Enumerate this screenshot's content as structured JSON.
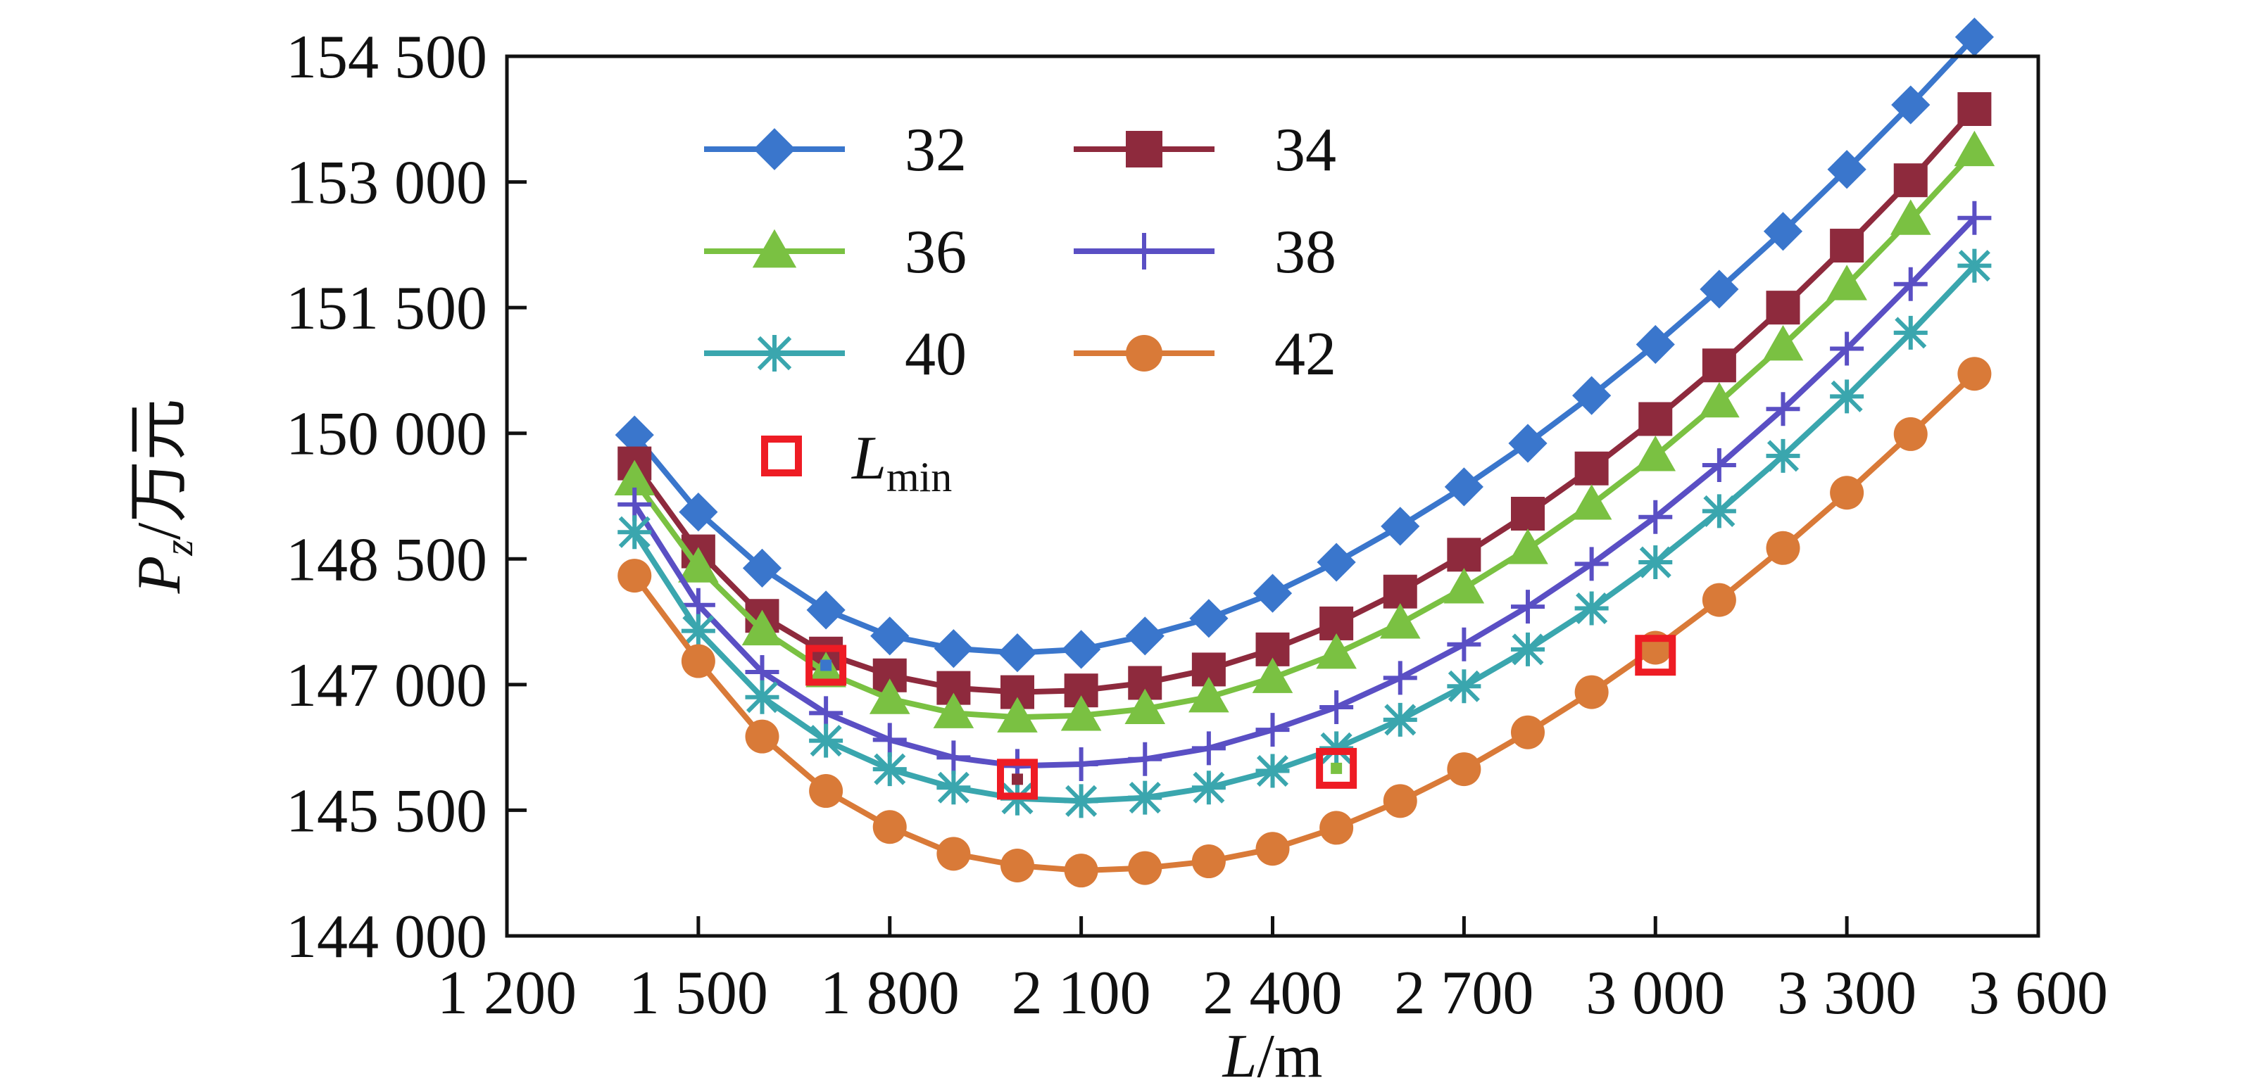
{
  "chart_data": {
    "type": "line",
    "x": [
      1400,
      1500,
      1600,
      1700,
      1800,
      1900,
      2000,
      2100,
      2200,
      2300,
      2400,
      2500,
      2600,
      2700,
      2800,
      2900,
      3000,
      3100,
      3200,
      3300,
      3400,
      3500
    ],
    "series": [
      {
        "name": "32",
        "color": "#3a76cc",
        "marker": "diamond",
        "values": [
          149980,
          149060,
          148390,
          147890,
          147580,
          147430,
          147380,
          147420,
          147580,
          147790,
          148090,
          148460,
          148890,
          149360,
          149880,
          150450,
          151060,
          151720,
          152410,
          153150,
          153920,
          154730
        ]
      },
      {
        "name": "34",
        "color": "#8e2a3d",
        "marker": "square",
        "values": [
          149640,
          148590,
          147820,
          147370,
          147110,
          146960,
          146910,
          146930,
          147020,
          147180,
          147420,
          147730,
          148110,
          148550,
          149040,
          149580,
          150170,
          150810,
          151500,
          152240,
          153020,
          153870
        ]
      },
      {
        "name": "36",
        "color": "#7ac142",
        "marker": "triangle",
        "values": [
          149440,
          148400,
          147650,
          147150,
          146830,
          146660,
          146610,
          146630,
          146710,
          146850,
          147080,
          147370,
          147730,
          148150,
          148620,
          149150,
          149730,
          150370,
          151050,
          151770,
          152550,
          153370
        ]
      },
      {
        "name": "38",
        "color": "#5a4fc4",
        "marker": "plus",
        "values": [
          149150,
          147950,
          147150,
          146660,
          146340,
          146130,
          146030,
          146050,
          146110,
          146240,
          146460,
          146730,
          147080,
          147480,
          147930,
          148440,
          149000,
          149620,
          150290,
          151010,
          151780,
          152570
        ]
      },
      {
        "name": "40",
        "color": "#3aa6ae",
        "marker": "asterisk",
        "values": [
          148820,
          147640,
          146850,
          146330,
          145990,
          145770,
          145640,
          145610,
          145650,
          145770,
          145970,
          146240,
          146580,
          146980,
          147420,
          147910,
          148460,
          149070,
          149730,
          150440,
          151200,
          152000
        ]
      },
      {
        "name": "42",
        "color": "#d97a38",
        "marker": "circle",
        "values": [
          148300,
          147280,
          146380,
          145730,
          145300,
          144980,
          144840,
          144780,
          144810,
          144890,
          145040,
          145290,
          145610,
          145990,
          146430,
          146910,
          147440,
          148010,
          148630,
          149290,
          149990,
          150710
        ]
      }
    ],
    "lmin": {
      "name": "L",
      "name_sub": "min",
      "color": "#ee1c24",
      "points": [
        {
          "series": "32",
          "x": 1700,
          "y": 147230
        },
        {
          "series": "34",
          "x": 2000,
          "y": 145870
        },
        {
          "series": "36",
          "x": 2500,
          "y": 146000
        },
        {
          "series": "42",
          "x": 3000,
          "y": 147350
        }
      ]
    },
    "xlim": [
      1200,
      3600
    ],
    "ylim": [
      144000,
      154500
    ],
    "xticks": [
      1200,
      1500,
      1800,
      2100,
      2400,
      2700,
      3000,
      3300,
      3600
    ],
    "xtick_labels": [
      "1 200",
      "1 500",
      "1 800",
      "2 100",
      "2 400",
      "2 700",
      "3 000",
      "3 300",
      "3 600"
    ],
    "yticks": [
      144000,
      145500,
      147000,
      148500,
      150000,
      151500,
      153000,
      154500
    ],
    "ytick_labels": [
      "144 000",
      "145 500",
      "147 000",
      "148 500",
      "150 000",
      "151 500",
      "153 000",
      "154 500"
    ],
    "xlabel_italic": "L",
    "xlabel_rest": "/m",
    "ylabel_italic": "P",
    "ylabel_sub": "z",
    "ylabel_rest": "/万元",
    "legend_position": "top-left",
    "legend_columns": 2,
    "grid": false
  }
}
